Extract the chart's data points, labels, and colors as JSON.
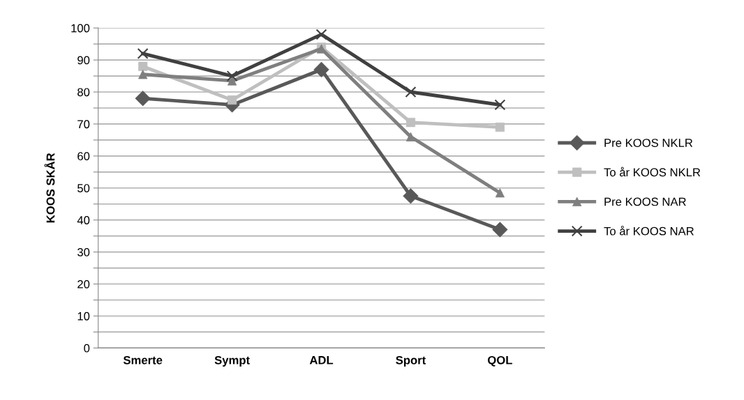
{
  "chart_data": {
    "type": "line",
    "ylabel": "KOOS SKÅR",
    "categories": [
      "Smerte",
      "Sympt",
      "ADL",
      "Sport",
      "QOL"
    ],
    "series": [
      {
        "name": "Pre KOOS NKLR",
        "color": "#595959",
        "marker": "diamond",
        "values": [
          78,
          76,
          87,
          47.5,
          37
        ]
      },
      {
        "name": "To år KOOS NKLR",
        "color": "#bfbfbf",
        "marker": "square",
        "values": [
          88,
          77.5,
          94,
          70.5,
          69
        ]
      },
      {
        "name": "Pre KOOS NAR",
        "color": "#7f7f7f",
        "marker": "triangle",
        "values": [
          85.5,
          83.5,
          93.5,
          66,
          48.5
        ]
      },
      {
        "name": "To år KOOS NAR",
        "color": "#404040",
        "marker": "cross",
        "values": [
          92,
          85,
          98,
          80,
          76
        ]
      }
    ],
    "ylim": [
      0,
      100
    ],
    "yticks": [
      0,
      {
        "value": 5,
        "label": null
      },
      10,
      {
        "value": 15,
        "label": null
      },
      20,
      {
        "value": 25,
        "label": null
      },
      30,
      {
        "value": 35,
        "label": null
      },
      40,
      {
        "value": 45,
        "label": null
      },
      50,
      {
        "value": 55,
        "label": null
      },
      60,
      {
        "value": 65,
        "label": null
      },
      70,
      {
        "value": 75,
        "label": null
      },
      80,
      {
        "value": 85,
        "label": null
      },
      90,
      {
        "value": 95,
        "label": null
      },
      100
    ],
    "grid": "y",
    "legend": "right",
    "line_style": "solid"
  }
}
